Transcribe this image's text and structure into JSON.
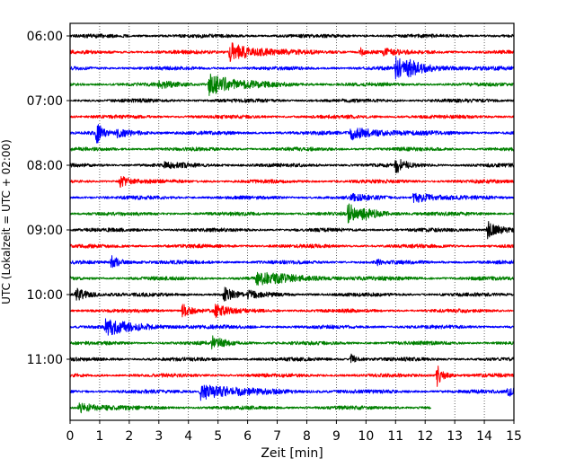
{
  "chart_data": {
    "type": "line",
    "title": "",
    "xlabel": "Zeit  [min]",
    "ylabel": "UTC (Lokalzeit = UTC + 02:00)",
    "xlim": [
      0,
      15
    ],
    "x_ticks": [
      "0",
      "1",
      "2",
      "3",
      "4",
      "5",
      "6",
      "7",
      "8",
      "9",
      "10",
      "11",
      "12",
      "13",
      "14",
      "15"
    ],
    "y_tick_labels": [
      "06:00",
      "07:00",
      "08:00",
      "09:00",
      "10:00",
      "11:00"
    ],
    "trace_interval_min": 15,
    "start_time": "06:00",
    "grid": "vertical-dotted",
    "color_cycle": [
      "#000000",
      "#ff0000",
      "#0000ff",
      "#008000"
    ],
    "series": [
      {
        "time": "06:00",
        "end_min": 15,
        "events": []
      },
      {
        "time": "06:15",
        "end_min": 15,
        "events": [
          {
            "t": 5.4,
            "amp": 10,
            "dur": 0.9
          },
          {
            "t": 9.8,
            "amp": 5,
            "dur": 0.2
          },
          {
            "t": 10.6,
            "amp": 3,
            "dur": 0.4
          }
        ]
      },
      {
        "time": "06:30",
        "end_min": 15,
        "events": [
          {
            "t": 11.0,
            "amp": 14,
            "dur": 0.3
          },
          {
            "t": 11.4,
            "amp": 6,
            "dur": 0.9
          }
        ]
      },
      {
        "time": "06:45",
        "end_min": 15,
        "events": [
          {
            "t": 4.7,
            "amp": 12,
            "dur": 0.9
          },
          {
            "t": 3.0,
            "amp": 3,
            "dur": 0.6
          }
        ]
      },
      {
        "time": "07:00",
        "end_min": 15,
        "events": []
      },
      {
        "time": "07:15",
        "end_min": 15,
        "events": []
      },
      {
        "time": "07:30",
        "end_min": 15,
        "events": [
          {
            "t": 0.9,
            "amp": 14,
            "dur": 0.15
          },
          {
            "t": 1.6,
            "amp": 4,
            "dur": 0.6
          },
          {
            "t": 9.5,
            "amp": 7,
            "dur": 0.9
          }
        ]
      },
      {
        "time": "07:45",
        "end_min": 15,
        "events": []
      },
      {
        "time": "08:00",
        "end_min": 15,
        "events": [
          {
            "t": 11.0,
            "amp": 8,
            "dur": 0.3
          },
          {
            "t": 3.2,
            "amp": 3,
            "dur": 0.6
          }
        ]
      },
      {
        "time": "08:15",
        "end_min": 15,
        "events": [
          {
            "t": 1.7,
            "amp": 6,
            "dur": 0.3
          }
        ]
      },
      {
        "time": "08:30",
        "end_min": 15,
        "events": [
          {
            "t": 11.6,
            "amp": 6,
            "dur": 0.6
          },
          {
            "t": 9.5,
            "amp": 3,
            "dur": 0.5
          }
        ]
      },
      {
        "time": "08:45",
        "end_min": 15,
        "events": [
          {
            "t": 9.4,
            "amp": 11,
            "dur": 0.4
          },
          {
            "t": 9.9,
            "amp": 4,
            "dur": 0.6
          }
        ]
      },
      {
        "time": "09:00",
        "end_min": 15,
        "events": [
          {
            "t": 14.1,
            "amp": 10,
            "dur": 0.4
          }
        ]
      },
      {
        "time": "09:15",
        "end_min": 15,
        "events": []
      },
      {
        "time": "09:30",
        "end_min": 15,
        "events": [
          {
            "t": 1.4,
            "amp": 7,
            "dur": 0.3
          },
          {
            "t": 10.4,
            "amp": 3,
            "dur": 0.1
          }
        ]
      },
      {
        "time": "09:45",
        "end_min": 15,
        "events": [
          {
            "t": 6.3,
            "amp": 6,
            "dur": 1.4
          }
        ]
      },
      {
        "time": "10:00",
        "end_min": 15,
        "events": [
          {
            "t": 0.2,
            "amp": 7,
            "dur": 0.4
          },
          {
            "t": 5.2,
            "amp": 8,
            "dur": 0.3
          },
          {
            "t": 6.0,
            "amp": 3,
            "dur": 0.5
          }
        ]
      },
      {
        "time": "10:15",
        "end_min": 15,
        "events": [
          {
            "t": 3.8,
            "amp": 8,
            "dur": 0.3
          },
          {
            "t": 4.9,
            "amp": 9,
            "dur": 0.3
          }
        ]
      },
      {
        "time": "10:30",
        "end_min": 15,
        "events": [
          {
            "t": 1.2,
            "amp": 8,
            "dur": 1.0
          }
        ]
      },
      {
        "time": "10:45",
        "end_min": 15,
        "events": [
          {
            "t": 4.8,
            "amp": 7,
            "dur": 0.4
          }
        ]
      },
      {
        "time": "11:00",
        "end_min": 15,
        "events": [
          {
            "t": 9.5,
            "amp": 5,
            "dur": 0.2
          }
        ]
      },
      {
        "time": "11:15",
        "end_min": 15,
        "events": [
          {
            "t": 12.4,
            "amp": 12,
            "dur": 0.2
          }
        ]
      },
      {
        "time": "11:30",
        "end_min": 15,
        "events": [
          {
            "t": 4.4,
            "amp": 9,
            "dur": 1.2
          },
          {
            "t": 14.8,
            "amp": 5,
            "dur": 0.4
          }
        ]
      },
      {
        "time": "11:45",
        "end_min": 12.2,
        "events": [
          {
            "t": 0.3,
            "amp": 6,
            "dur": 0.6
          }
        ]
      }
    ]
  }
}
